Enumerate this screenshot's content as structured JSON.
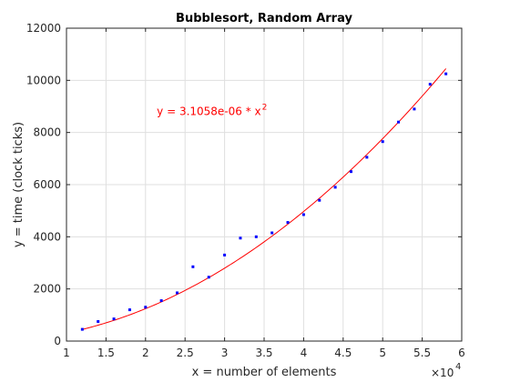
{
  "chart_data": {
    "type": "scatter",
    "title": "Bubblesort, Random Array",
    "xlabel": "x = number of elements",
    "ylabel": "y = time (clock ticks)",
    "x_multiplier_label": "×10",
    "x_multiplier_exponent": "4",
    "xlim": [
      10000,
      60000
    ],
    "ylim": [
      0,
      12000
    ],
    "xticks": [
      10000,
      15000,
      20000,
      25000,
      30000,
      35000,
      40000,
      45000,
      50000,
      55000,
      60000
    ],
    "xtick_labels": [
      "1",
      "1.5",
      "2",
      "2.5",
      "3",
      "3.5",
      "4",
      "4.5",
      "5",
      "5.5",
      "6"
    ],
    "yticks": [
      0,
      2000,
      4000,
      6000,
      8000,
      10000,
      12000
    ],
    "ytick_labels": [
      "0",
      "2000",
      "4000",
      "6000",
      "8000",
      "10000",
      "12000"
    ],
    "grid": true,
    "series": [
      {
        "kind": "points",
        "color": "#0000ff",
        "x": [
          12000,
          14000,
          16000,
          18000,
          20000,
          22000,
          24000,
          26000,
          28000,
          30000,
          32000,
          34000,
          36000,
          38000,
          40000,
          42000,
          44000,
          46000,
          48000,
          50000,
          52000,
          54000,
          56000,
          58000
        ],
        "y": [
          450,
          750,
          850,
          1200,
          1300,
          1550,
          1850,
          2850,
          2450,
          3300,
          3950,
          4000,
          4150,
          4550,
          4850,
          5400,
          5900,
          6500,
          7050,
          7650,
          8400,
          8900,
          9850,
          10250
        ]
      },
      {
        "kind": "fit",
        "color": "#ff0000",
        "coefficient": 3.1058e-06,
        "exponent": 2,
        "x_start": 12000,
        "x_end": 58000
      }
    ],
    "annotation": {
      "text": "y = 3.1058e-06 * x",
      "superscript": "2",
      "color": "#ff0000",
      "x": 22000,
      "y": 8800
    }
  }
}
